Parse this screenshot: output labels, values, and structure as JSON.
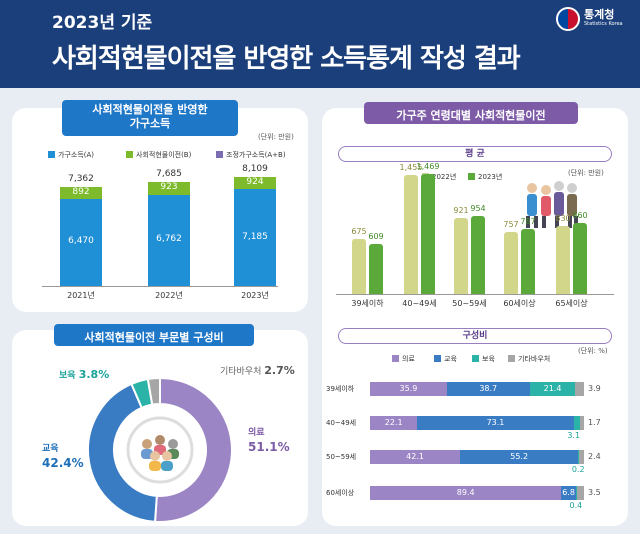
{
  "header": {
    "subtitle": "2023년 기준",
    "title": "사회적현물이전을 반영한 소득통계 작성 결과",
    "logo_name": "통계청",
    "logo_en": "Statistics Korea"
  },
  "colors": {
    "header_bg": "#1b3f7a",
    "blue": "#1f8fd6",
    "green": "#7dbb2c",
    "purple": "#9b85c4",
    "olive_light": "#d2d68a",
    "green_dark": "#5aa93a",
    "teal": "#2bb3a8",
    "gray": "#a6a6a6",
    "navy_edu": "#3a7cc4"
  },
  "panel1": {
    "tag_line1": "사회적현물이전을 반영한",
    "tag_line2": "가구소득",
    "unit": "(단위: 만원)",
    "legend": [
      "가구소득(A)",
      "사회적현물이전(B)",
      "조정가구소득(A+B)"
    ]
  },
  "panel2": {
    "tag": "가구주 연령대별 사회적현물이전",
    "avg_pill": "평 균",
    "unit": "(단위: 만원)",
    "legend": [
      "2022년",
      "2023년"
    ]
  },
  "panel3": {
    "tag": "사회적현물이전 부문별 구성비",
    "labels": [
      {
        "name": "의료",
        "pct": "51.1%"
      },
      {
        "name": "교육",
        "pct": "42.4%"
      },
      {
        "name": "보육",
        "pct": "3.8%"
      },
      {
        "name": "기타바우처",
        "pct": "2.7%"
      }
    ]
  },
  "panel4": {
    "pill": "구성비",
    "unit": "(단위: %)",
    "legend": [
      "의료",
      "교육",
      "보육",
      "기타바우처"
    ]
  },
  "chart_data": [
    {
      "type": "bar",
      "title": "사회적현물이전을 반영한 가구소득",
      "categories": [
        "2021년",
        "2022년",
        "2023년"
      ],
      "series": [
        {
          "name": "가구소득(A)",
          "values": [
            6470,
            6762,
            7185
          ]
        },
        {
          "name": "사회적현물이전(B)",
          "values": [
            892,
            923,
            924
          ]
        },
        {
          "name": "조정가구소득(A+B)",
          "values": [
            7362,
            7685,
            8109
          ]
        }
      ],
      "stacked": true
    },
    {
      "type": "bar",
      "title": "가구주 연령대별 사회적현물이전",
      "categories": [
        "39세이하",
        "40~49세",
        "50~59세",
        "60세이상",
        "65세이상"
      ],
      "series": [
        {
          "name": "2022년",
          "values": [
            675,
            1455,
            921,
            757,
            830
          ]
        },
        {
          "name": "2023년",
          "values": [
            609,
            1469,
            954,
            787,
            860
          ]
        }
      ]
    },
    {
      "type": "pie",
      "title": "사회적현물이전 부문별 구성비",
      "categories": [
        "의료",
        "교육",
        "보육",
        "기타바우처"
      ],
      "values": [
        51.1,
        42.4,
        3.8,
        2.7
      ]
    },
    {
      "type": "bar",
      "title": "구성비",
      "orientation": "horizontal",
      "stacked": true,
      "categories": [
        "39세이하",
        "40~49세",
        "50~59세",
        "60세이상"
      ],
      "series": [
        {
          "name": "의료",
          "values": [
            35.9,
            22.1,
            42.1,
            89.4
          ]
        },
        {
          "name": "교육",
          "values": [
            38.7,
            73.1,
            55.2,
            6.8
          ]
        },
        {
          "name": "보육",
          "values": [
            21.4,
            3.1,
            0.2,
            0.4
          ]
        },
        {
          "name": "기타바우처",
          "values": [
            3.9,
            1.7,
            2.4,
            3.5
          ]
        }
      ]
    }
  ]
}
